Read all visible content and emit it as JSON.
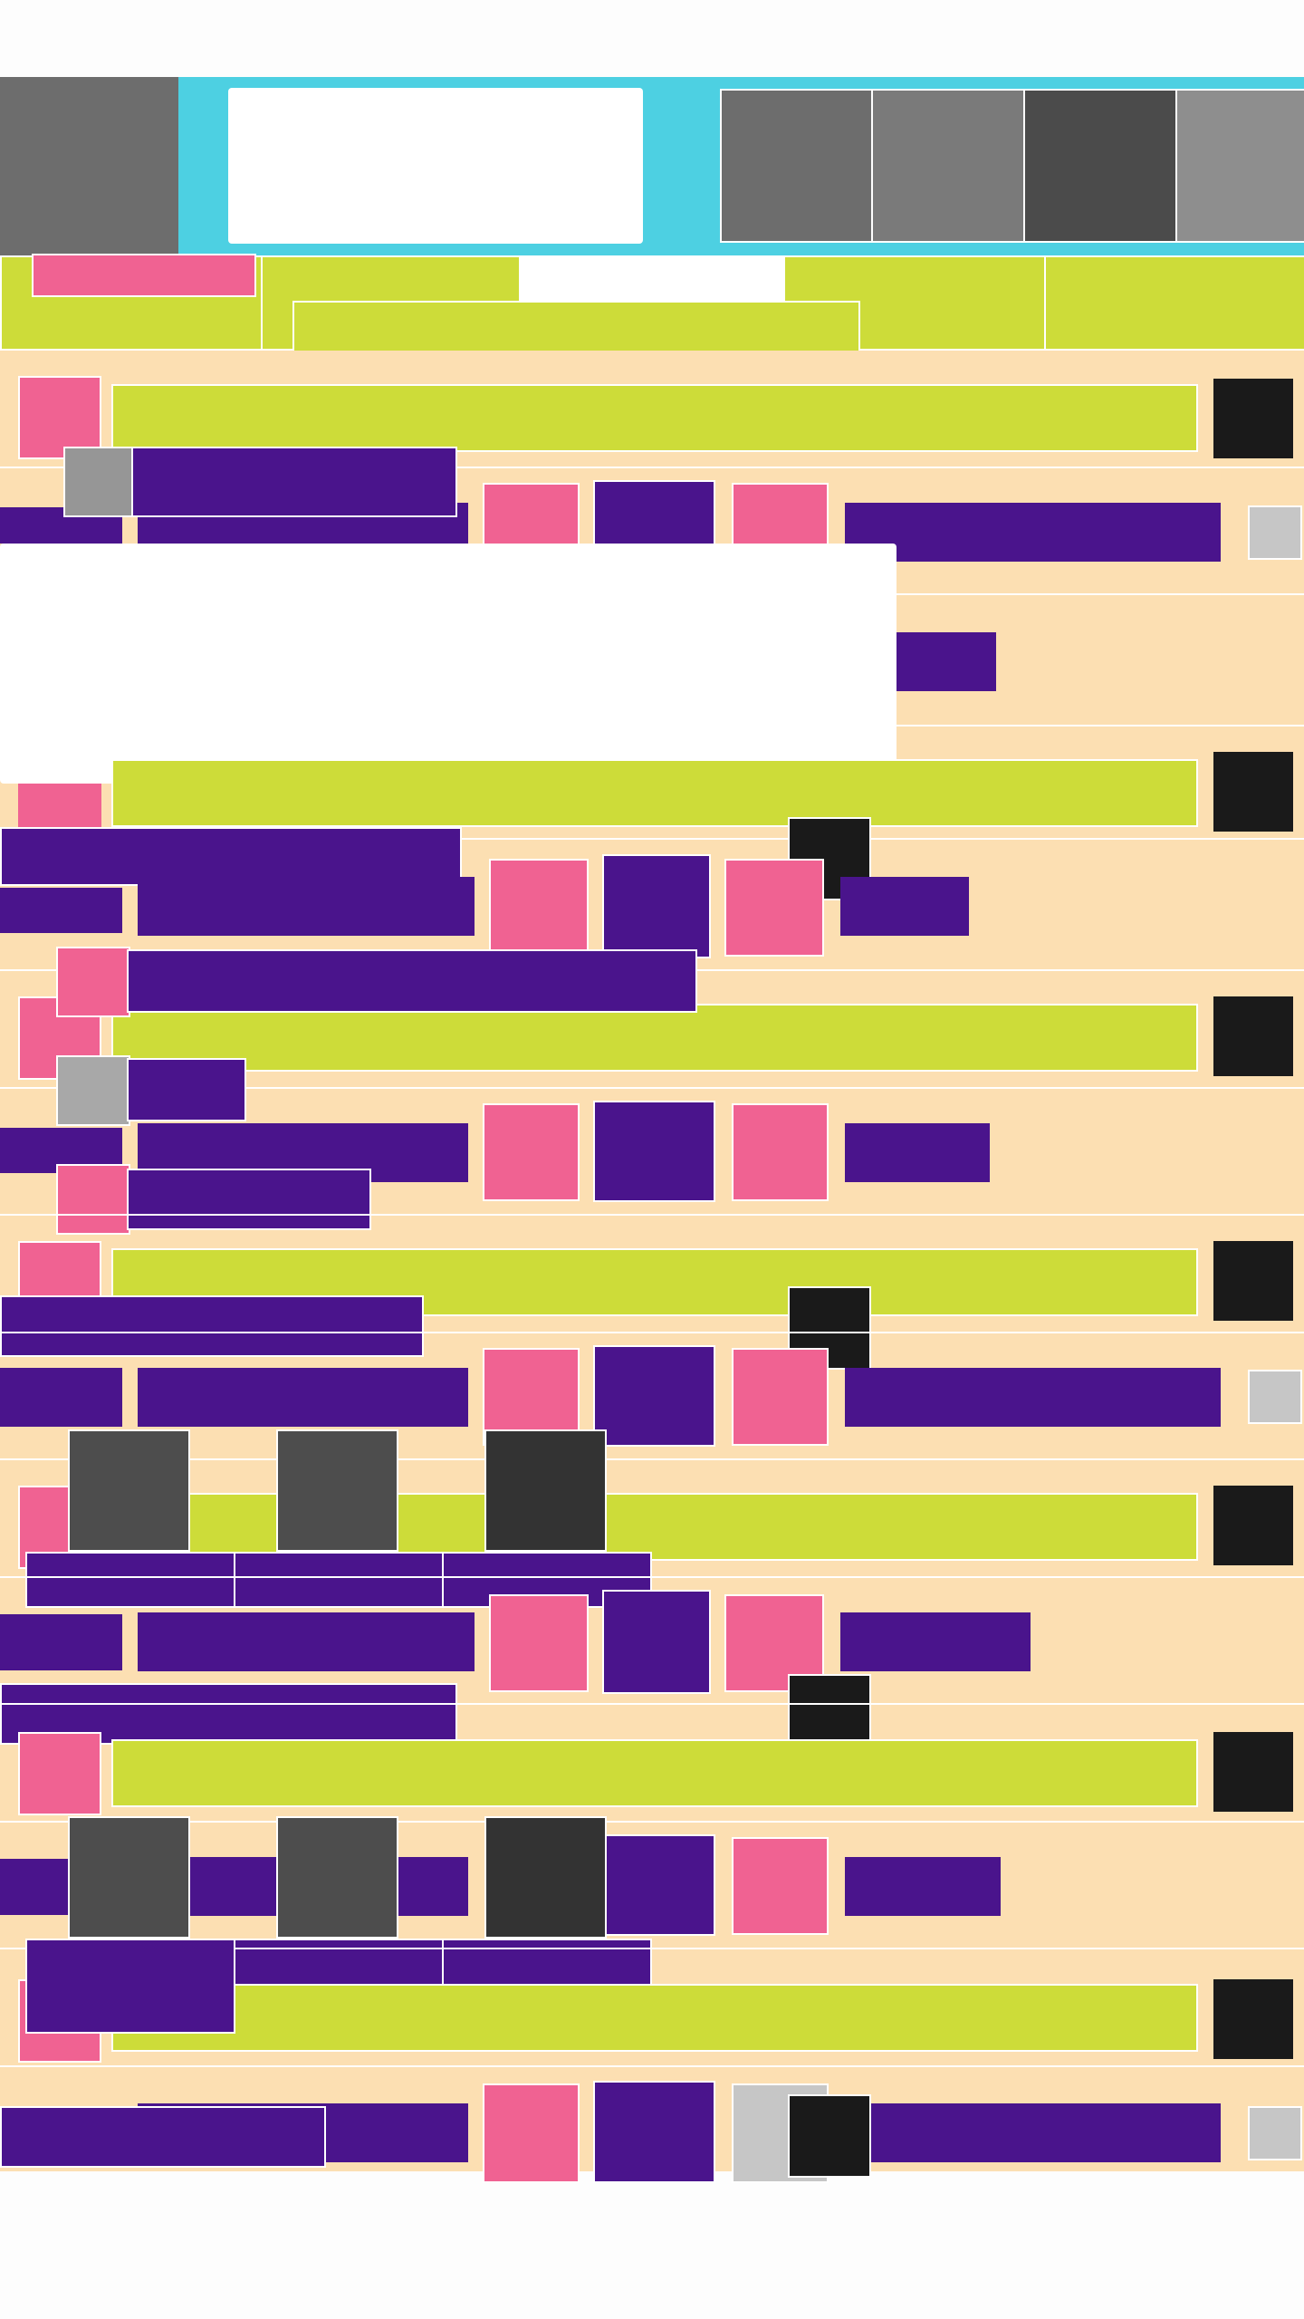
{
  "palette": {
    "header": "#4dd0e2",
    "accent_lime": "#cddc39",
    "accent_pink": "#f06292",
    "accent_purple": "#4a148c",
    "row_background": "#fcdfb2",
    "icon_dark": "#1a1a1a"
  },
  "header": {
    "logo": "logo-block",
    "search": {
      "value": ""
    },
    "toolbar_icons": [
      "toolbar-icon-1",
      "toolbar-icon-2",
      "toolbar-icon-3",
      "toolbar-icon-4"
    ]
  },
  "tabs": {
    "items": [
      "tab-1",
      "tab-2",
      "tab-3",
      "tab-4",
      "tab-5"
    ]
  },
  "list": {
    "row_count": 14
  },
  "icons": [
    "avatar-icon",
    "more-icon",
    "close-icon",
    "image-icon"
  ]
}
